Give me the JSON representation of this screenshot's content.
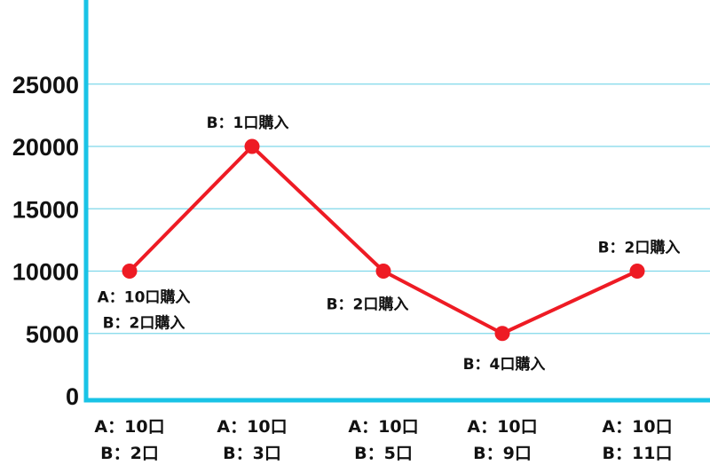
{
  "chart_data": {
    "type": "line",
    "title": "",
    "xlabel": "",
    "ylabel": "",
    "ylim": [
      0,
      28000
    ],
    "yticks": [
      0,
      5000,
      10000,
      15000,
      20000,
      25000
    ],
    "grid": true,
    "colors": {
      "axis": "#19c3e6",
      "grid": "#7fd8ea",
      "line": "#ee1b24"
    },
    "categories": [
      [
        "A：10口",
        "B：2口"
      ],
      [
        "A：10口",
        "B：3口"
      ],
      [
        "A：10口",
        "B：5口"
      ],
      [
        "A：10口",
        "B：9口"
      ],
      [
        "A：10口",
        "B：11口"
      ]
    ],
    "series": [
      {
        "values": [
          10000,
          20000,
          10000,
          5000,
          10000
        ]
      }
    ],
    "annotations": [
      {
        "lines": [
          "A：10口購入",
          "B：2口購入"
        ],
        "placement": "below"
      },
      {
        "lines": [
          "B：1口購入"
        ],
        "placement": "above"
      },
      {
        "lines": [
          "B：2口購入"
        ],
        "placement": "below"
      },
      {
        "lines": [
          "B：4口購入"
        ],
        "placement": "below"
      },
      {
        "lines": [
          "B：2口購入"
        ],
        "placement": "above"
      }
    ]
  }
}
